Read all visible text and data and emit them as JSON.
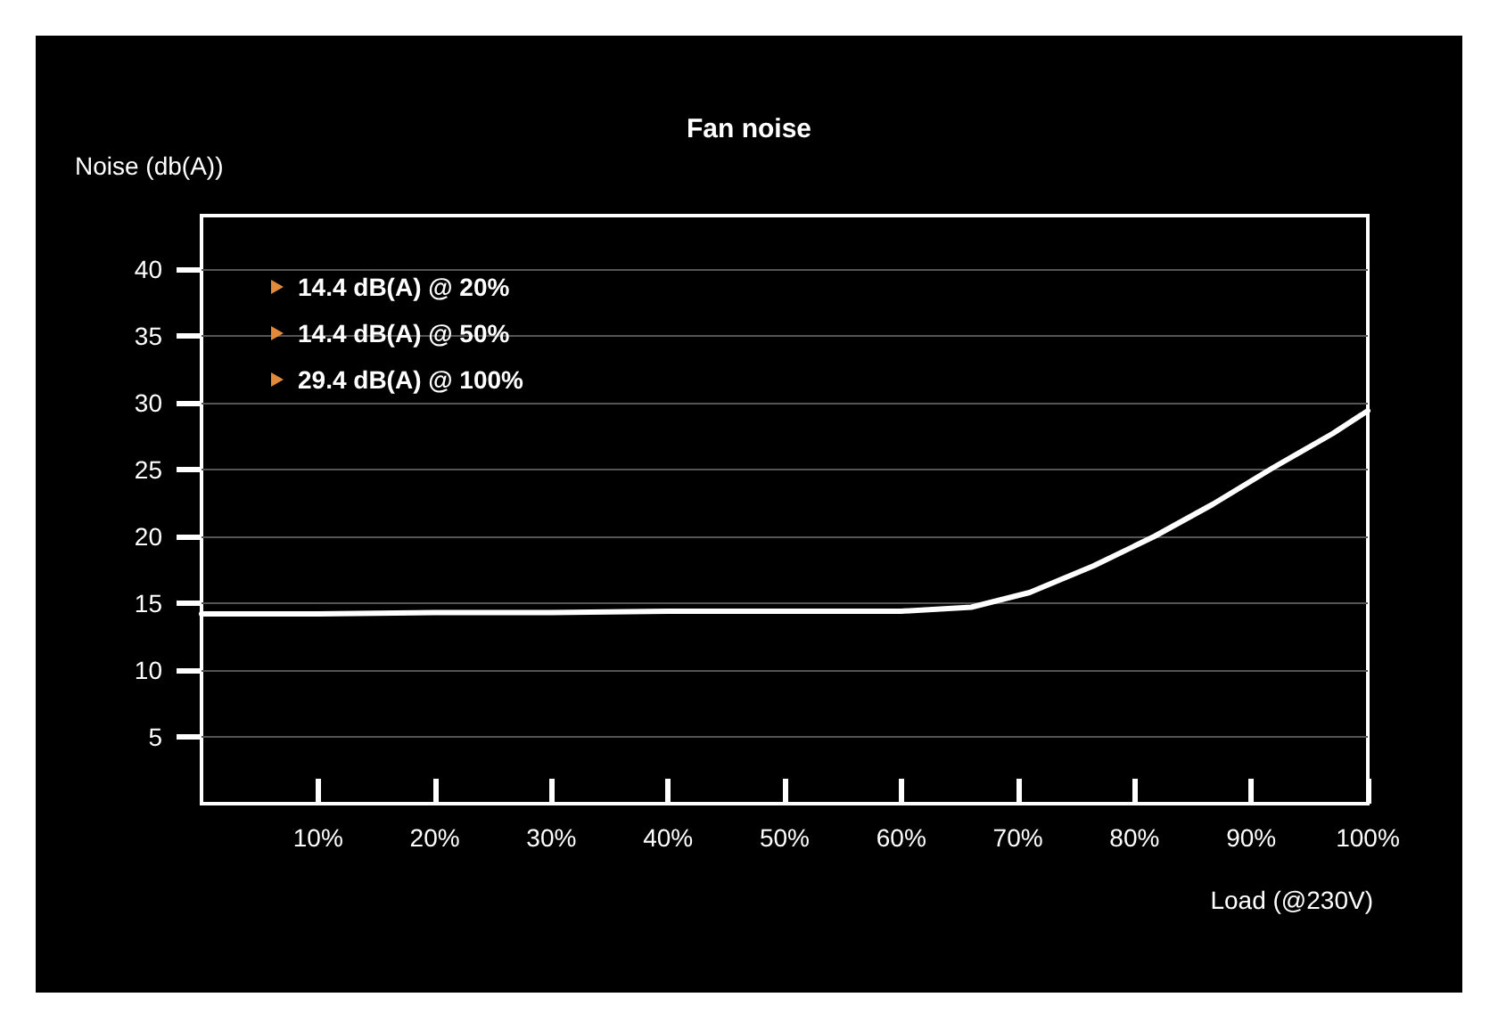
{
  "chart_data": {
    "type": "line",
    "title": "Fan noise",
    "ylabel": "Noise (db(A))",
    "xlabel": "Load (@230V)",
    "x": [
      0,
      10,
      20,
      30,
      40,
      50,
      56,
      60,
      66,
      71,
      76.5,
      81.7,
      86.7,
      91.8,
      97,
      100
    ],
    "series": [
      {
        "color": "#ffffff",
        "values": [
          14.2,
          14.2,
          14.3,
          14.3,
          14.4,
          14.4,
          14.4,
          14.4,
          14.7,
          15.8,
          17.8,
          20,
          22.4,
          25.1,
          27.7,
          29.4
        ]
      }
    ],
    "xlim": [
      0,
      100
    ],
    "xticks": [
      {
        "value": 10,
        "label": "10%"
      },
      {
        "value": 20,
        "label": "20%"
      },
      {
        "value": 30,
        "label": "30%"
      },
      {
        "value": 40,
        "label": "40%"
      },
      {
        "value": 50,
        "label": "50%"
      },
      {
        "value": 60,
        "label": "60%"
      },
      {
        "value": 70,
        "label": "70%"
      },
      {
        "value": 80,
        "label": "80%"
      },
      {
        "value": 90,
        "label": "90%"
      },
      {
        "value": 100,
        "label": "100%"
      }
    ],
    "ylim": [
      0,
      44
    ],
    "yticks": [
      5,
      10,
      15,
      20,
      25,
      30,
      35,
      40
    ],
    "grid": "y",
    "marker": "none",
    "line_style": "solid",
    "annotations": [
      "14.4 dB(A) @ 20%",
      "14.4 dB(A) @ 50%",
      "29.4 dB(A) @ 100%"
    ]
  }
}
